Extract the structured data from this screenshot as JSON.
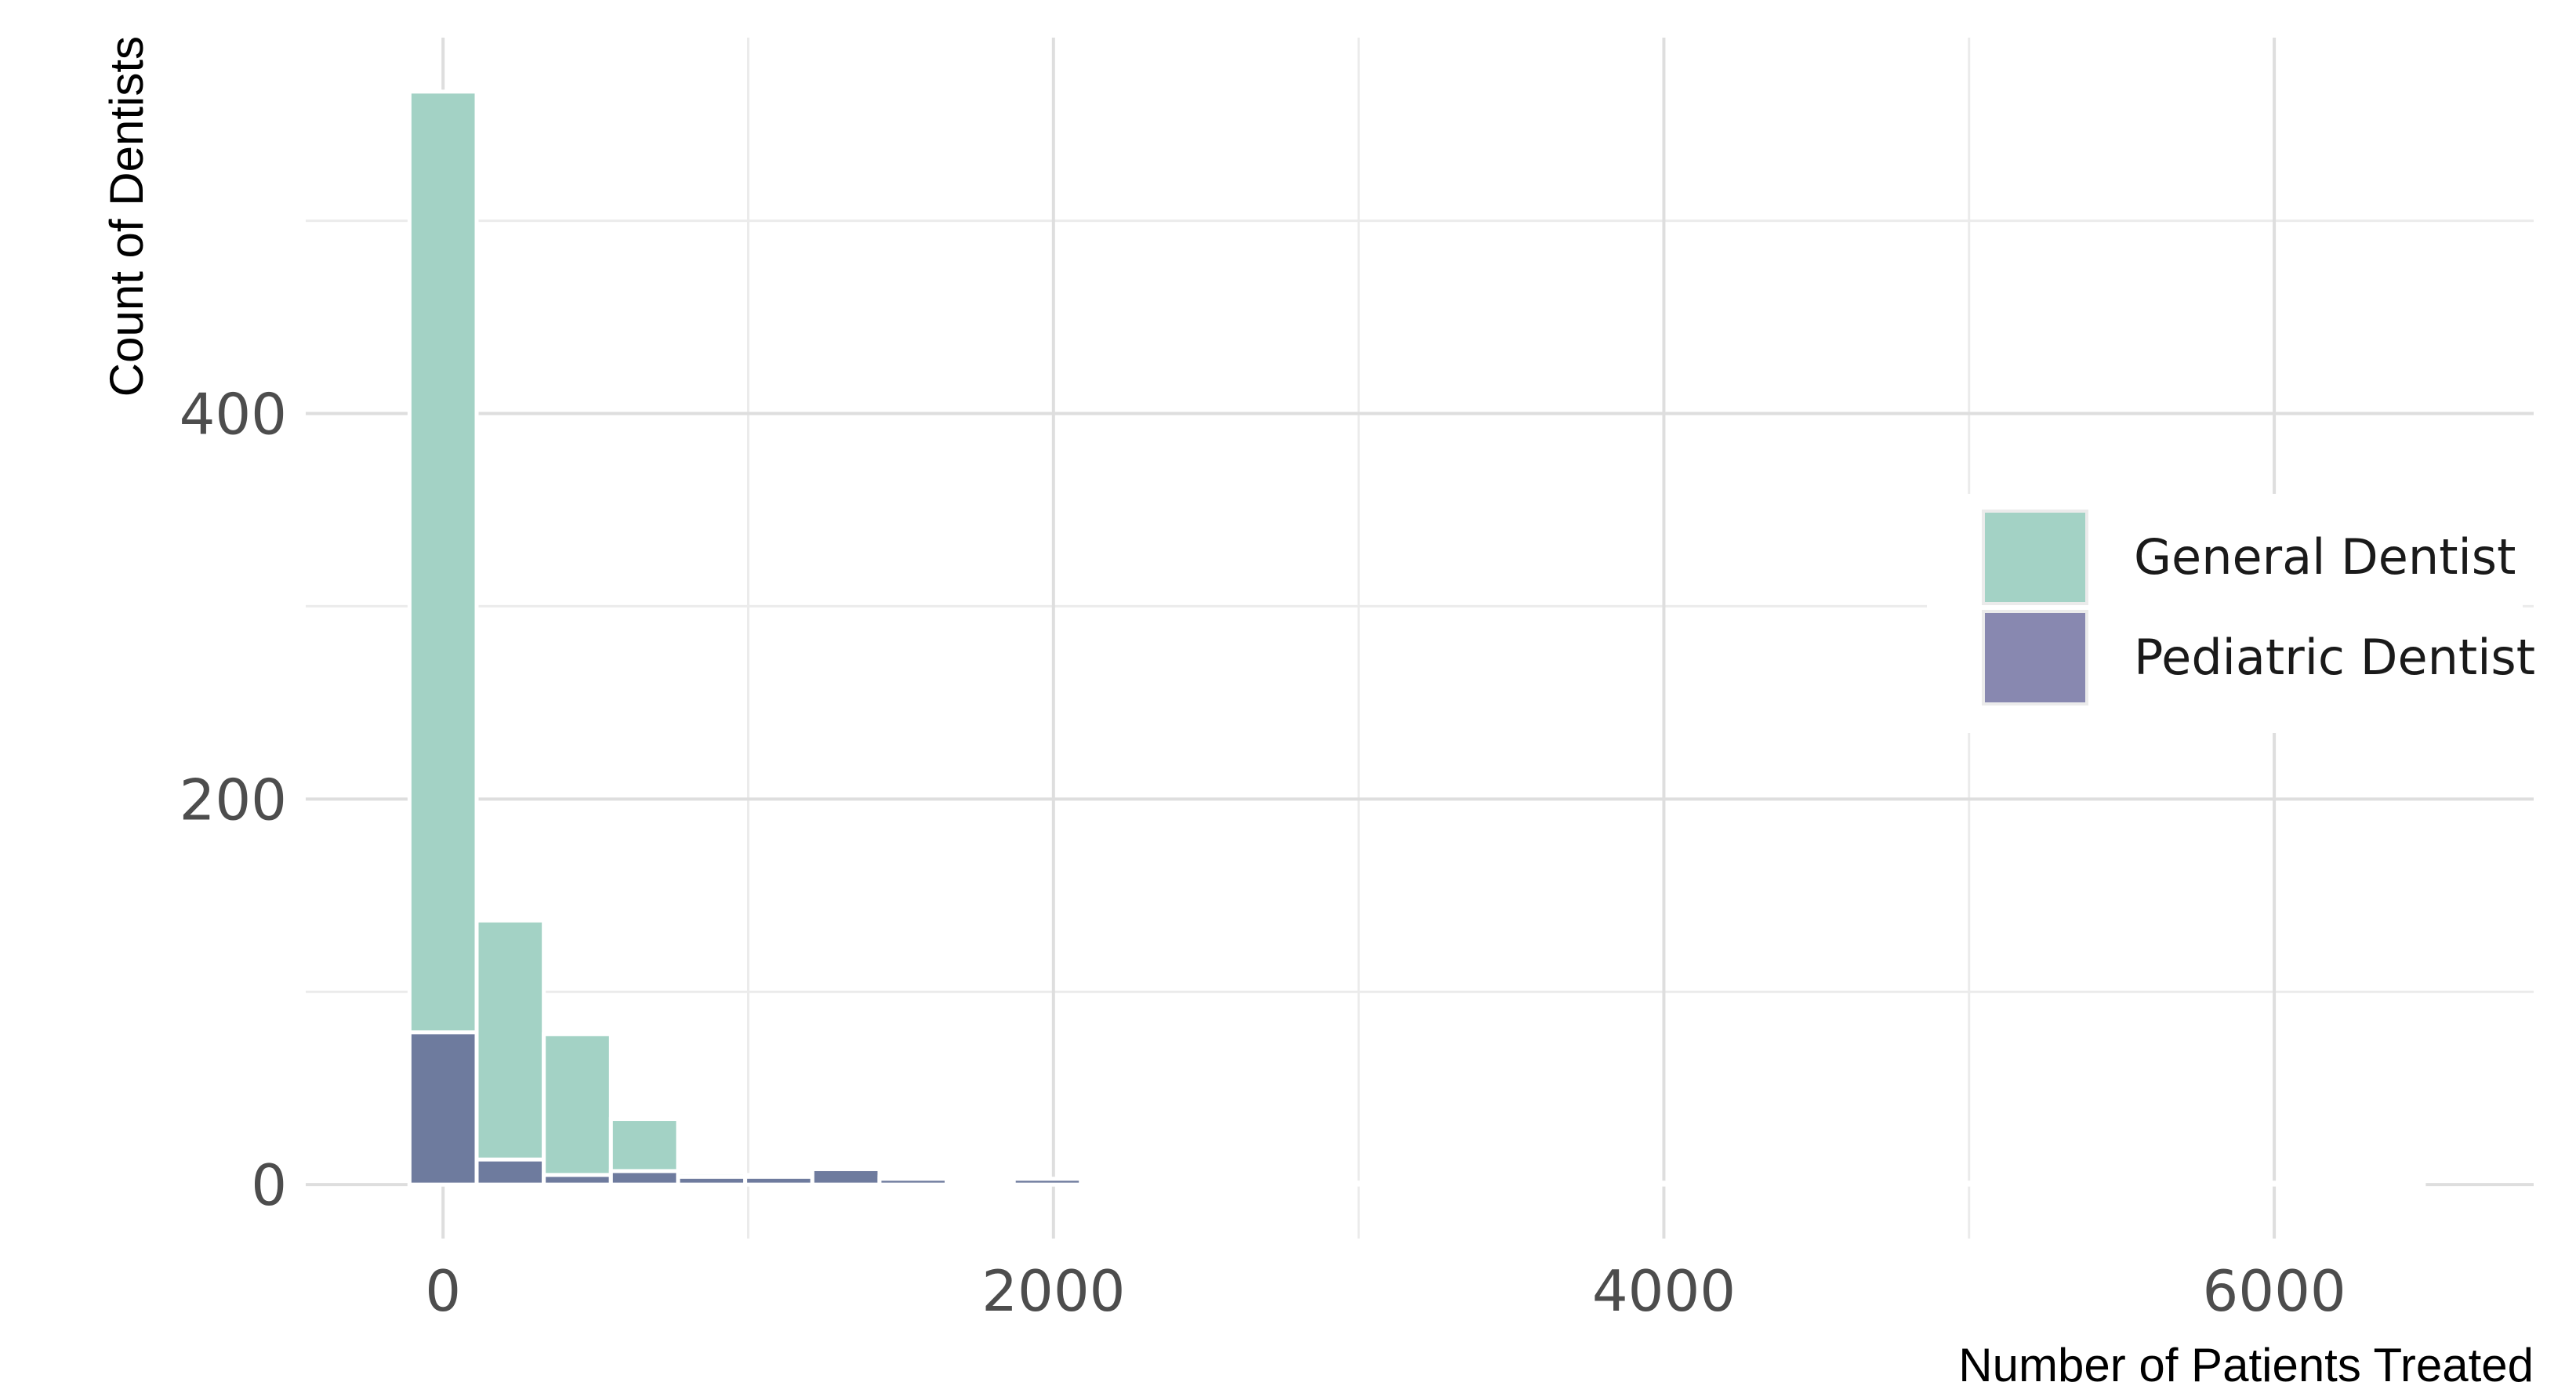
{
  "chart_data": {
    "type": "bar",
    "subtype": "overlaid-histogram",
    "xlabel": "Number of Patients Treated",
    "ylabel": "Count of Dentists",
    "xlim": [
      -450,
      6850
    ],
    "ylim": [
      -28,
      595
    ],
    "x_ticks": [
      0,
      2000,
      4000,
      6000
    ],
    "x_tick_labels": [
      "0",
      "2000",
      "4000",
      "6000"
    ],
    "x_minor_gridlines": [
      1000,
      3000,
      5000
    ],
    "y_ticks": [
      0,
      200,
      400
    ],
    "y_tick_labels": [
      "0",
      "200",
      "400"
    ],
    "y_minor_gridlines": [
      100,
      300,
      500
    ],
    "bin_width": 220,
    "bin_centers": [
      0,
      220,
      440,
      660,
      880,
      1100,
      1320,
      1540,
      1760,
      1980,
      2200,
      2420,
      2640,
      2860,
      3080,
      3300,
      3520,
      3740,
      3960,
      4180,
      4400,
      4620,
      4840,
      5060,
      5280,
      5500,
      5720,
      5940,
      6160,
      6380
    ],
    "series": [
      {
        "name": "General Dentist",
        "color": "#a3d2c5",
        "values": [
          567,
          137,
          78,
          34,
          6,
          5,
          8,
          4,
          2,
          3,
          1,
          1,
          1,
          1,
          1,
          1,
          1,
          1,
          1,
          1,
          1,
          1,
          1,
          1,
          1,
          1,
          1,
          1,
          1,
          1
        ]
      },
      {
        "name": "Pediatric Dentist",
        "color": "#8888b0",
        "values": [
          79,
          13,
          5,
          7,
          4,
          4,
          8,
          3,
          1,
          3,
          1,
          1,
          0,
          0,
          0,
          0,
          0,
          0,
          0,
          0,
          0,
          0,
          0,
          0,
          0,
          0,
          0,
          0,
          0,
          0
        ]
      }
    ],
    "overlap_color": "#6e7b9e",
    "legend_position": "right",
    "grid": true
  }
}
